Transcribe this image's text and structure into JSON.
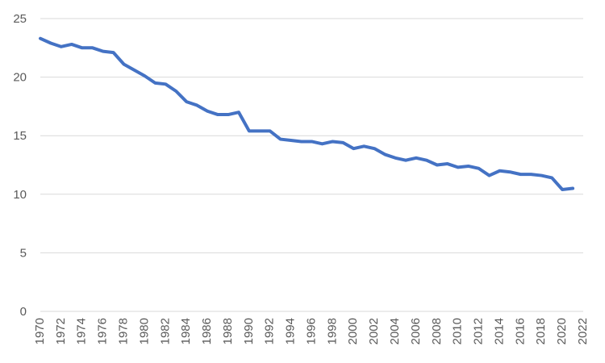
{
  "chart_data": {
    "type": "line",
    "title": "",
    "xlabel": "",
    "ylabel": "",
    "xlim": [
      1970,
      2022
    ],
    "ylim": [
      0,
      25
    ],
    "grid": true,
    "legend": "none",
    "x_ticks": [
      "1970",
      "1972",
      "1974",
      "1976",
      "1978",
      "1980",
      "1982",
      "1984",
      "1986",
      "1988",
      "1990",
      "1992",
      "1994",
      "1996",
      "1998",
      "2000",
      "2002",
      "2004",
      "2006",
      "2008",
      "2010",
      "2012",
      "2014",
      "2016",
      "2018",
      "2020",
      "2022"
    ],
    "y_ticks": [
      "0",
      "5",
      "10",
      "15",
      "20",
      "25"
    ],
    "x": [
      1970,
      1971,
      1972,
      1973,
      1974,
      1975,
      1976,
      1977,
      1978,
      1979,
      1980,
      1981,
      1982,
      1983,
      1984,
      1985,
      1986,
      1987,
      1988,
      1989,
      1990,
      1991,
      1992,
      1993,
      1994,
      1995,
      1996,
      1997,
      1998,
      1999,
      2000,
      2001,
      2002,
      2003,
      2004,
      2005,
      2006,
      2007,
      2008,
      2009,
      2010,
      2011,
      2012,
      2013,
      2014,
      2015,
      2016,
      2017,
      2018,
      2019,
      2020,
      2021
    ],
    "series": [
      {
        "color": "#4472c4",
        "values": [
          23.3,
          22.9,
          22.6,
          22.8,
          22.5,
          22.5,
          22.2,
          22.1,
          21.1,
          20.6,
          20.1,
          19.5,
          19.4,
          18.8,
          17.9,
          17.6,
          17.1,
          16.8,
          16.8,
          17.0,
          15.4,
          15.4,
          15.4,
          14.7,
          14.6,
          14.5,
          14.5,
          14.3,
          14.5,
          14.4,
          13.9,
          14.1,
          13.9,
          13.4,
          13.1,
          12.9,
          13.1,
          12.9,
          12.5,
          12.6,
          12.3,
          12.4,
          12.2,
          11.6,
          12.0,
          11.9,
          11.7,
          11.7,
          11.6,
          11.4,
          10.4,
          10.5
        ]
      }
    ]
  }
}
